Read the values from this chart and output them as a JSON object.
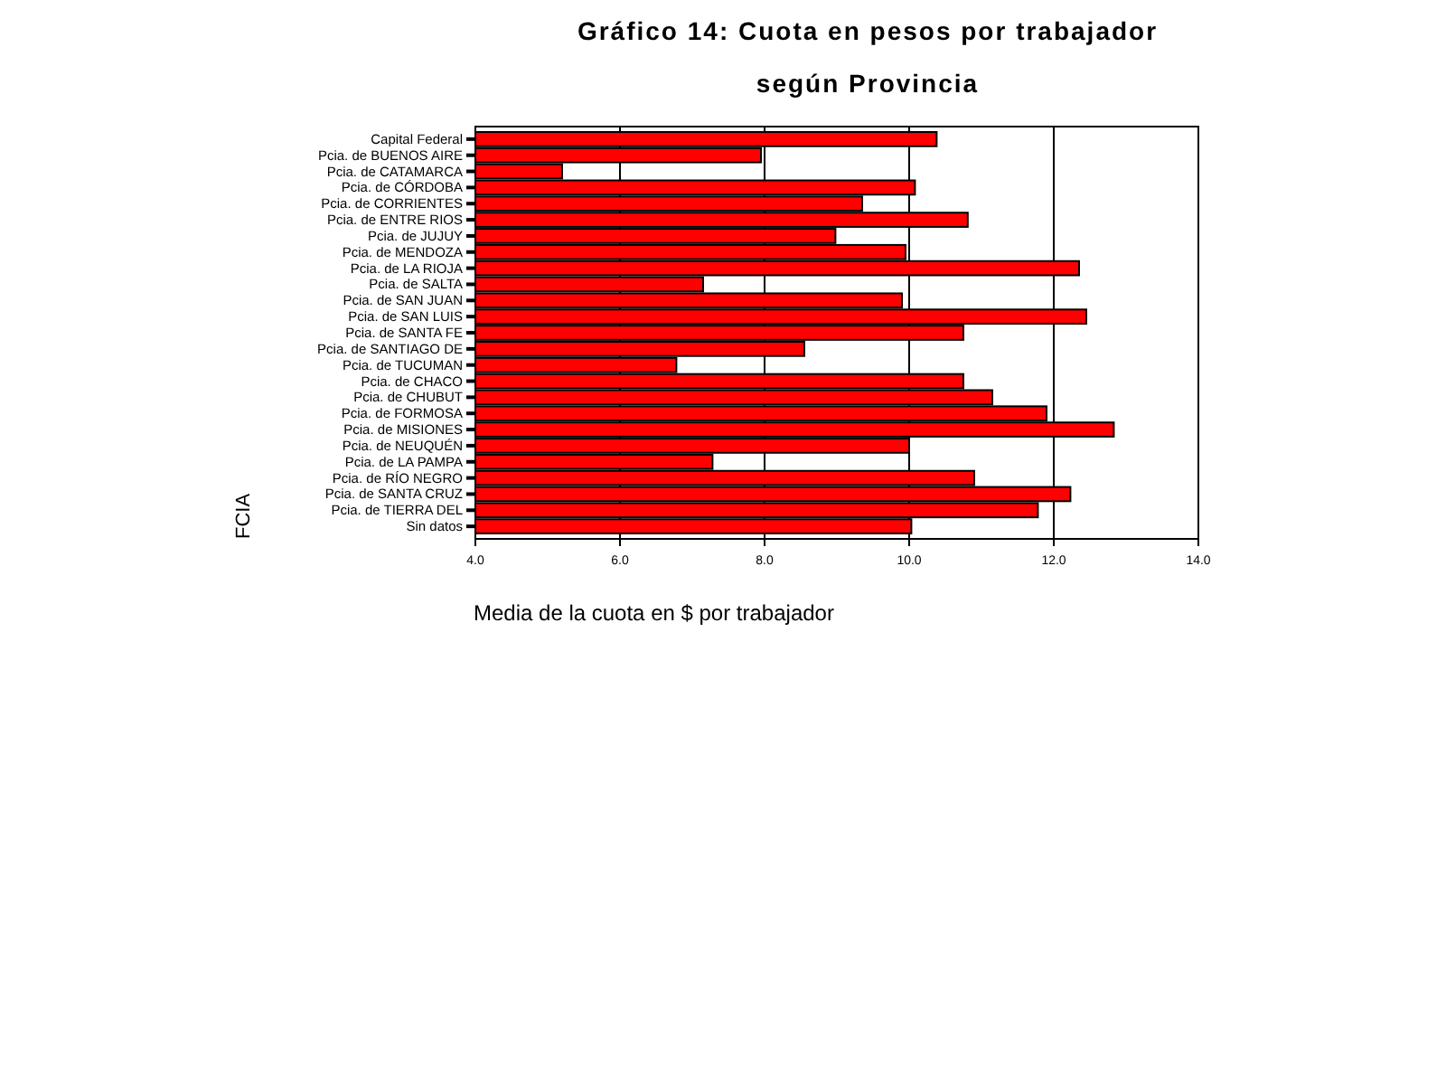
{
  "chart_data": {
    "type": "bar",
    "orientation": "horizontal",
    "title": "Gráfico 14: Cuota en pesos por trabajador",
    "subtitle": "según Provincia",
    "xlabel": "Media de la cuota en $ por trabajador",
    "ylabel": "FCIA",
    "categories": [
      "Capital Federal",
      "Pcia. de BUENOS AIRE",
      "Pcia. de CATAMARCA",
      "Pcia. de CÓRDOBA",
      "Pcia. de CORRIENTES",
      "Pcia. de ENTRE RIOS",
      "Pcia. de JUJUY",
      "Pcia. de MENDOZA",
      "Pcia. de LA RIOJA",
      "Pcia. de SALTA",
      "Pcia. de SAN JUAN",
      "Pcia. de SAN LUIS",
      "Pcia. de SANTA FE",
      "Pcia. de SANTIAGO DE",
      "Pcia. de TUCUMAN",
      "Pcia. de CHACO",
      "Pcia. de CHUBUT",
      "Pcia. de FORMOSA",
      "Pcia. de MISIONES",
      "Pcia. de NEUQUÉN",
      "Pcia. de LA PAMPA",
      "Pcia. de RÍO NEGRO",
      "Pcia. de SANTA CRUZ",
      "Pcia. de TIERRA DEL",
      "Sin datos"
    ],
    "values": [
      10.38,
      7.95,
      5.2,
      10.08,
      9.35,
      10.81,
      8.98,
      9.95,
      12.35,
      7.15,
      9.9,
      12.45,
      10.75,
      8.55,
      6.78,
      10.75,
      11.15,
      11.9,
      12.83,
      10.0,
      7.28,
      10.9,
      12.23,
      11.78,
      10.03
    ],
    "color": "#ff0000",
    "xlim": [
      4,
      14
    ],
    "xticks": [
      {
        "value": 4,
        "label": "4.0"
      },
      {
        "value": 6,
        "label": "6.0"
      },
      {
        "value": 8,
        "label": "8.0"
      },
      {
        "value": 10,
        "label": "10.0"
      },
      {
        "value": 12,
        "label": "12.0"
      },
      {
        "value": 14,
        "label": "14.0"
      }
    ],
    "grid": "x"
  }
}
